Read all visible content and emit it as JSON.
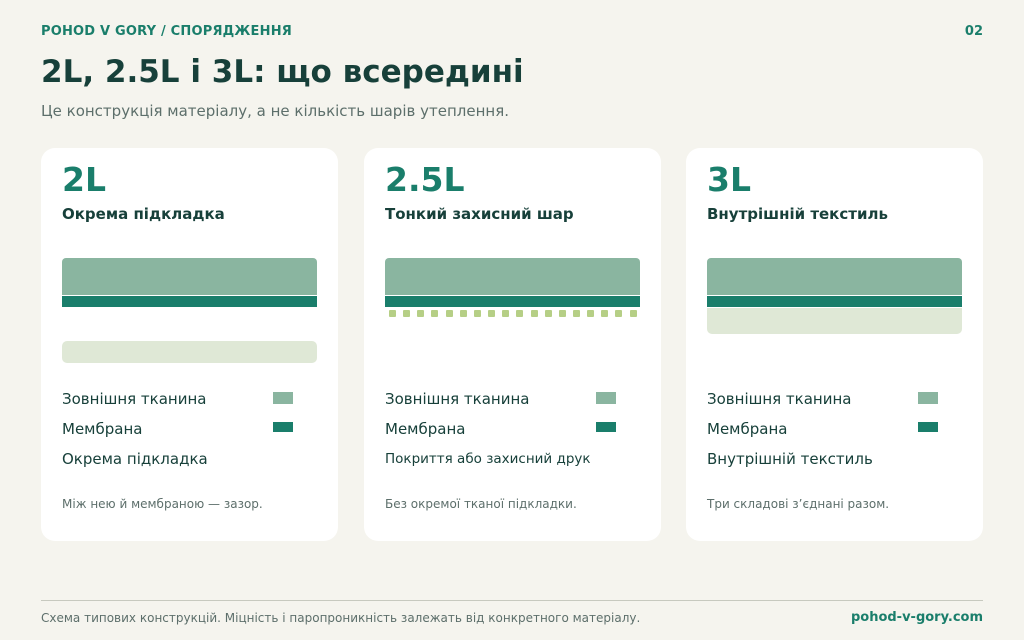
{
  "header": {
    "section": "POHOD V GORY / СПОРЯДЖЕННЯ",
    "page": "02",
    "title": "2L, 2.5L і 3L: що всередині",
    "subtitle": "Це конструкція матеріалу, а не кількість шарів утеплення."
  },
  "cards": [
    {
      "code": "2L",
      "heading": "Окрема підкладка",
      "legend": [
        "Зовнішня тканина",
        "Мембрана",
        "Окрема підкладка"
      ],
      "note": "Між нею й мембраною — зазор."
    },
    {
      "code": "2.5L",
      "heading": "Тонкий захисний шар",
      "legend": [
        "Зовнішня тканина",
        "Мембрана",
        "Покриття або захисний друк"
      ],
      "note": "Без окремої тканої підкладки."
    },
    {
      "code": "3L",
      "heading": "Внутрішній текстиль",
      "legend": [
        "Зовнішня тканина",
        "Мембрана",
        "Внутрішній текстиль"
      ],
      "note": "Три складові з’єднані разом."
    }
  ],
  "footer": {
    "note": "Схема типових конструкцій. Міцність і паропроникність залежать від конкретного матеріалу.",
    "link": "pohod-v-gory.com"
  },
  "colors": {
    "accent": "#1a7e6b",
    "outer_fabric": "#8ab5a0",
    "membrane": "#1a7e6b",
    "lining": "#dfe8d6",
    "coating": "#b6cf86",
    "background": "#f5f4ee",
    "card": "#ffffff"
  }
}
